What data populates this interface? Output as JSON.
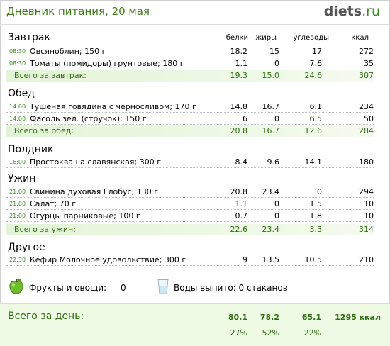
{
  "header": {
    "title": "Дневник питания, 20 мая",
    "logo_main": "diets",
    "logo_tld": ".ru"
  },
  "columns": {
    "protein": "белки",
    "fat": "жиры",
    "carbs": "углеводы",
    "kcal": "ккал"
  },
  "meals": [
    {
      "name": "Завтрак",
      "items": [
        {
          "time": "08:30",
          "name": "Овсяноблин; 150 г",
          "protein": "18.2",
          "fat": "15",
          "carbs": "17",
          "kcal": "272"
        },
        {
          "time": "08:30",
          "name": "Томаты (помидоры) грунтовые; 180 г",
          "protein": "1.1",
          "fat": "0",
          "carbs": "7.6",
          "kcal": "35"
        }
      ],
      "total": {
        "label": "Всего за завтрак:",
        "protein": "19.3",
        "fat": "15.0",
        "carbs": "24.6",
        "kcal": "307"
      }
    },
    {
      "name": "Обед",
      "items": [
        {
          "time": "14:00",
          "name": "Тушеная говядина с черносливом; 170 г",
          "protein": "14.8",
          "fat": "16.7",
          "carbs": "6.1",
          "kcal": "234"
        },
        {
          "time": "14:00",
          "name": "Фасоль зел. (стручок); 150 г",
          "protein": "6",
          "fat": "0",
          "carbs": "6.5",
          "kcal": "50"
        }
      ],
      "total": {
        "label": "Всего за обед:",
        "protein": "20.8",
        "fat": "16.7",
        "carbs": "12.6",
        "kcal": "284"
      }
    },
    {
      "name": "Полдник",
      "items": [
        {
          "time": "16:00",
          "name": "Простокваша славянская; 300 г",
          "protein": "8.4",
          "fat": "9.6",
          "carbs": "14.1",
          "kcal": "180"
        }
      ]
    },
    {
      "name": "Ужин",
      "items": [
        {
          "time": "21:00",
          "name": "Свинина духовая Глобус; 130 г",
          "protein": "20.8",
          "fat": "23.4",
          "carbs": "0",
          "kcal": "294"
        },
        {
          "time": "21:00",
          "name": "Салат; 70 г",
          "protein": "1.1",
          "fat": "0",
          "carbs": "1.5",
          "kcal": "10"
        },
        {
          "time": "21:00",
          "name": "Огурцы парниковые; 100 г",
          "protein": "0.7",
          "fat": "0",
          "carbs": "1.8",
          "kcal": "10"
        }
      ],
      "total": {
        "label": "Всего за ужин:",
        "protein": "22.6",
        "fat": "23.4",
        "carbs": "3.3",
        "kcal": "314"
      }
    },
    {
      "name": "Другое",
      "items": [
        {
          "time": "22:30",
          "name": "Кефир Молочное удовольствие; 300 г",
          "protein": "9",
          "fat": "13.5",
          "carbs": "10.5",
          "kcal": "210"
        }
      ]
    }
  ],
  "extras": {
    "fruits_label": "Фрукты и овощи:",
    "fruits_value": "0",
    "water_label": "Воды выпито: 0 стаканов",
    "fruit_icon": "green-apple-icon",
    "water_icon": "water-glass-icon"
  },
  "day_total": {
    "label": "Всего за день:",
    "protein": "80.1",
    "fat": "78.2",
    "carbs": "65.1",
    "kcal": "1295 ккал",
    "protein_pct": "27%",
    "fat_pct": "52%",
    "carbs_pct": "22%"
  },
  "colors": {
    "accent_green": "#3a8d1c",
    "total_green": "#2d6e10",
    "total_bg": "#e3f4d6"
  }
}
